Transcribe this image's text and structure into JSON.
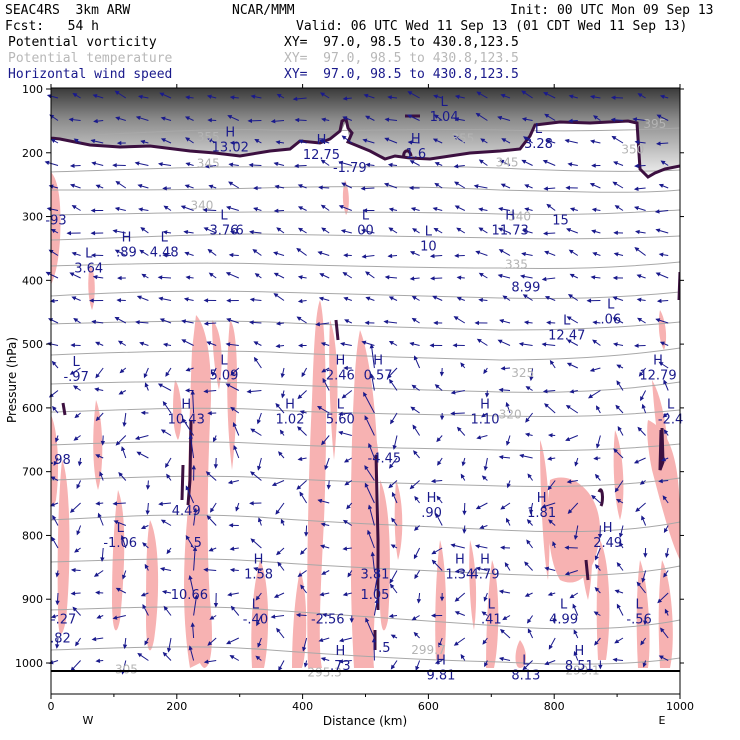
{
  "header": {
    "model": "SEAC4RS  3km ARW",
    "center": "NCAR/MMM",
    "init": "Init: 00 UTC Mon 09 Sep 13",
    "fcst": "Fcst:   54 h",
    "valid": "Valid: 06 UTC Wed 11 Sep 13 (01 CDT Wed 11 Sep 13)",
    "fields": [
      {
        "name": "Potential vorticity",
        "xy": "XY=  97.0, 98.5 to 430.8,123.5"
      },
      {
        "name": "Potential temperature",
        "xy": "XY=  97.0, 98.5 to 430.8,123.5"
      },
      {
        "name": "Horizontal wind speed",
        "xy": "XY=  97.0, 98.5 to 430.8,123.5"
      }
    ]
  },
  "colors": {
    "pv_shade": "#f7b2b2",
    "pv_contour": "#3c1040",
    "theta": "#a8a8a8",
    "wind": "#1a1a8c",
    "strat_shade": "#6e6e6e"
  },
  "chart_data": {
    "type": "cross-section",
    "xlabel": "Distance (km)",
    "ylabel": "Pressure (hPa)",
    "xlim": [
      0,
      1000
    ],
    "ylim": [
      1000,
      100
    ],
    "x_ticks": [
      0,
      200,
      400,
      600,
      800,
      1000
    ],
    "y_ticks": [
      100,
      200,
      300,
      400,
      500,
      600,
      700,
      800,
      900,
      1000
    ],
    "end_labels": {
      "left": "W",
      "right": "E"
    },
    "theta_contours": [
      {
        "label": "305",
        "x": 120,
        "p": 1010
      },
      {
        "label": "325",
        "x": 750,
        "p": 545
      },
      {
        "label": "320",
        "x": 730,
        "p": 610
      },
      {
        "label": "335",
        "x": 740,
        "p": 375
      },
      {
        "label": "340",
        "x": 745,
        "p": 300
      },
      {
        "label": "340",
        "x": 240,
        "p": 283
      },
      {
        "label": "345",
        "x": 250,
        "p": 217
      },
      {
        "label": "345",
        "x": 725,
        "p": 215
      },
      {
        "label": "350",
        "x": 925,
        "p": 195
      },
      {
        "label": "355",
        "x": 250,
        "p": 175
      },
      {
        "label": "355",
        "x": 655,
        "p": 178
      },
      {
        "label": "395",
        "x": 960,
        "p": 155
      },
      {
        "label": "295.3",
        "x": 435,
        "p": 1015
      },
      {
        "label": "299.7",
        "x": 600,
        "p": 980
      },
      {
        "label": "299.1",
        "x": 845,
        "p": 1012
      }
    ],
    "extrema": [
      {
        "type": "H",
        "value": "13.02",
        "x": 285,
        "p": 190
      },
      {
        "type": "H",
        "value": "12.75",
        "x": 430,
        "p": 202
      },
      {
        "type": "",
        "value": "-1.79",
        "x": 475,
        "p": 222
      },
      {
        "type": "H",
        "value": "1.6",
        "x": 580,
        "p": 200
      },
      {
        "type": "L",
        "value": "1.04",
        "x": 625,
        "p": 142
      },
      {
        "type": "L",
        "value": "3.28",
        "x": 775,
        "p": 185
      },
      {
        "type": "",
        "value": "-93",
        "x": 8,
        "p": 305
      },
      {
        "type": "L",
        "value": "3.76",
        "x": 275,
        "p": 320
      },
      {
        "type": "",
        "value": "6",
        "x": 300,
        "p": 320
      },
      {
        "type": "L",
        "value": "00",
        "x": 500,
        "p": 320
      },
      {
        "type": "L",
        "value": "10",
        "x": 600,
        "p": 345
      },
      {
        "type": "H",
        "value": "11.73",
        "x": 730,
        "p": 320
      },
      {
        "type": "",
        "value": "15",
        "x": 810,
        "p": 305
      },
      {
        "type": "H",
        "value": ".89",
        "x": 120,
        "p": 355
      },
      {
        "type": "L",
        "value": "4.48",
        "x": 180,
        "p": 355
      },
      {
        "type": "L",
        "value": "3.64",
        "x": 60,
        "p": 380
      },
      {
        "type": "",
        "value": "8.99",
        "x": 755,
        "p": 410
      },
      {
        "type": "L",
        "value": ".06",
        "x": 890,
        "p": 460
      },
      {
        "type": "L",
        "value": "12.47",
        "x": 820,
        "p": 485
      },
      {
        "type": "L",
        "value": "-.97",
        "x": 40,
        "p": 550
      },
      {
        "type": "L",
        "value": "5.09",
        "x": 275,
        "p": 548
      },
      {
        "type": "H",
        "value": "2.46",
        "x": 460,
        "p": 548
      },
      {
        "type": "H",
        "value": "0.57",
        "x": 520,
        "p": 548
      },
      {
        "type": "H",
        "value": "12.79",
        "x": 965,
        "p": 548
      },
      {
        "type": "H",
        "value": "10.43",
        "x": 215,
        "p": 617
      },
      {
        "type": "H",
        "value": "1.02",
        "x": 380,
        "p": 617
      },
      {
        "type": "L",
        "value": "5.60",
        "x": 460,
        "p": 617
      },
      {
        "type": "H",
        "value": "1.10",
        "x": 690,
        "p": 617
      },
      {
        "type": "L",
        "value": "-2.4",
        "x": 985,
        "p": 617
      },
      {
        "type": "",
        "value": ".98",
        "x": 15,
        "p": 680
      },
      {
        "type": "",
        "value": "-4.45",
        "x": 530,
        "p": 678
      },
      {
        "type": "",
        "value": "4.49",
        "x": 215,
        "p": 760
      },
      {
        "type": "H",
        "value": ".90",
        "x": 605,
        "p": 763
      },
      {
        "type": "H",
        "value": "1.81",
        "x": 780,
        "p": 763
      },
      {
        "type": "L",
        "value": "-1.06",
        "x": 110,
        "p": 810
      },
      {
        "type": "",
        "value": ".5",
        "x": 230,
        "p": 810
      },
      {
        "type": "H",
        "value": "2.49",
        "x": 885,
        "p": 810
      },
      {
        "type": "H",
        "value": "1.58",
        "x": 330,
        "p": 860
      },
      {
        "type": "",
        "value": "3.81",
        "x": 515,
        "p": 860
      },
      {
        "type": "H",
        "value": "1.34",
        "x": 650,
        "p": 860
      },
      {
        "type": "H",
        "value": "4.79",
        "x": 690,
        "p": 860
      },
      {
        "type": "",
        "value": "10.66",
        "x": 220,
        "p": 892
      },
      {
        "type": "",
        "value": "1.05",
        "x": 515,
        "p": 892
      },
      {
        "type": "L",
        "value": "-.40",
        "x": 325,
        "p": 930
      },
      {
        "type": "",
        "value": "-2.56",
        "x": 440,
        "p": 930
      },
      {
        "type": "L",
        "value": ".41",
        "x": 700,
        "p": 930
      },
      {
        "type": "L",
        "value": "4.99",
        "x": 815,
        "p": 930
      },
      {
        "type": "L",
        "value": "-.56",
        "x": 935,
        "p": 930
      },
      {
        "type": "",
        "value": "-.27",
        "x": 20,
        "p": 930
      },
      {
        "type": "",
        "value": ".82",
        "x": 15,
        "p": 960
      },
      {
        "type": "",
        "value": ".5",
        "x": 530,
        "p": 975
      },
      {
        "type": "H",
        "value": ".73",
        "x": 460,
        "p": 1003
      },
      {
        "type": "H",
        "value": "8.51",
        "x": 840,
        "p": 1003
      },
      {
        "type": "H",
        "value": "9.81",
        "x": 620,
        "p": 1018
      },
      {
        "type": "L",
        "value": "8.13",
        "x": 755,
        "p": 1018
      }
    ]
  }
}
